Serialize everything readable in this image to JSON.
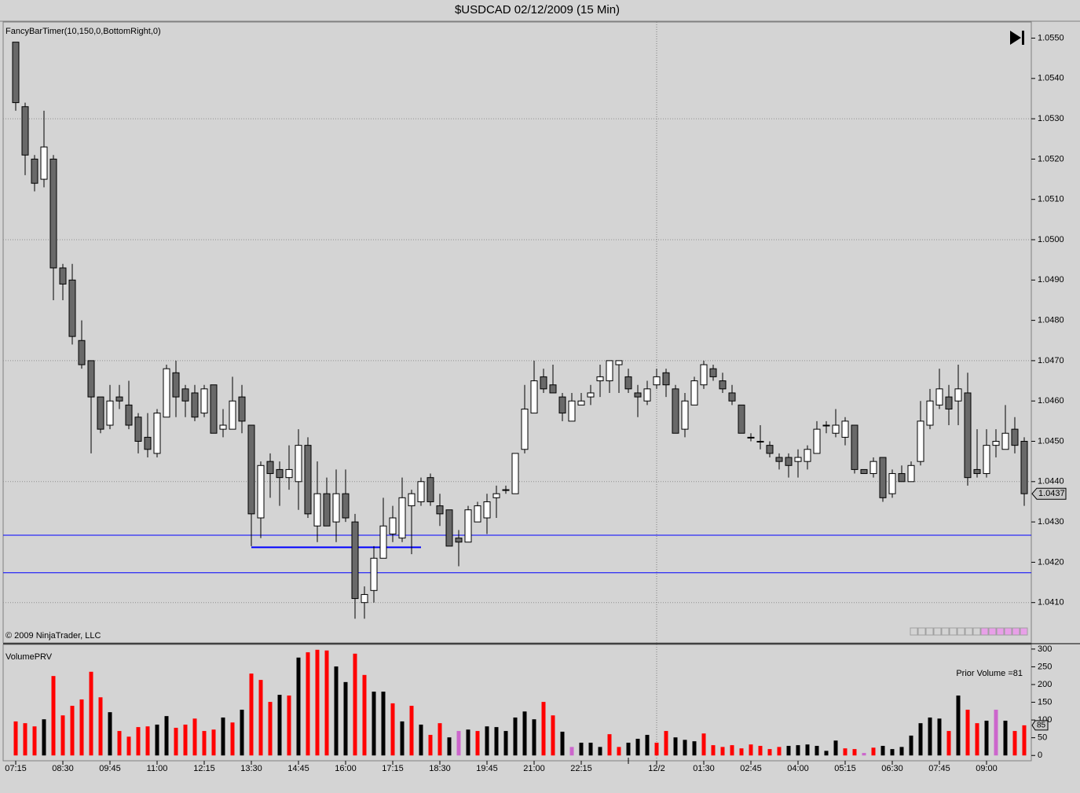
{
  "chart_data": [
    {
      "type": "candlestick",
      "title": "$USDCAD  02/12/2009 (15 Min)",
      "annotations": [
        "FancyBarTimer(10,150,0,BottomRight,0)",
        "© 2009 NinjaTrader, LLC"
      ],
      "up_color": "#ffffff",
      "down_color": "#696969",
      "ylim": [
        1.04,
        1.0554
      ],
      "yticks": [
        {
          "value": 1.055,
          "label": "1.0550"
        },
        {
          "value": 1.054,
          "label": "1.0540"
        },
        {
          "value": 1.053,
          "label": "1.0530"
        },
        {
          "value": 1.052,
          "label": "1.0520"
        },
        {
          "value": 1.051,
          "label": "1.0510"
        },
        {
          "value": 1.05,
          "label": "1.0500"
        },
        {
          "value": 1.049,
          "label": "1.0490"
        },
        {
          "value": 1.048,
          "label": "1.0480"
        },
        {
          "value": 1.047,
          "label": "1.0470"
        },
        {
          "value": 1.046,
          "label": "1.0460"
        },
        {
          "value": 1.045,
          "label": "1.0450"
        },
        {
          "value": 1.044,
          "label": "1.0440"
        },
        {
          "value": 1.043,
          "label": "1.0430"
        },
        {
          "value": 1.042,
          "label": "1.0420"
        },
        {
          "value": 1.041,
          "label": "1.0410"
        }
      ],
      "ygrid": [
        1.053,
        1.05,
        1.047,
        1.044,
        1.041
      ],
      "hlines": [
        {
          "value": 1.04267,
          "color": "#0000ff"
        },
        {
          "value": 1.04174,
          "color": "#0000ff"
        }
      ],
      "segment": {
        "value": 1.04237,
        "from": 25,
        "to": 43,
        "color": "#0000ff"
      },
      "cursor_index": 68,
      "x_labels": [
        {
          "index": 0,
          "label": "07:15"
        },
        {
          "index": 5,
          "label": "08:30"
        },
        {
          "index": 10,
          "label": "09:45"
        },
        {
          "index": 15,
          "label": "11:00"
        },
        {
          "index": 20,
          "label": "12:15"
        },
        {
          "index": 25,
          "label": "13:30"
        },
        {
          "index": 30,
          "label": "14:45"
        },
        {
          "index": 35,
          "label": "16:00"
        },
        {
          "index": 40,
          "label": "17:15"
        },
        {
          "index": 45,
          "label": "18:30"
        },
        {
          "index": 50,
          "label": "19:45"
        },
        {
          "index": 55,
          "label": "21:00"
        },
        {
          "index": 60,
          "label": "22:15"
        },
        {
          "index": 68,
          "label": "12/2"
        },
        {
          "index": 73,
          "label": "01:30"
        },
        {
          "index": 78,
          "label": "02:45"
        },
        {
          "index": 83,
          "label": "04:00"
        },
        {
          "index": 88,
          "label": "05:15"
        },
        {
          "index": 93,
          "label": "06:30"
        },
        {
          "index": 98,
          "label": "07:45"
        },
        {
          "index": 103,
          "label": "09:00"
        }
      ],
      "x_unlabeled_ticks": [
        65
      ],
      "open": [
        1.0549,
        1.0533,
        1.052,
        1.0515,
        1.052,
        1.0493,
        1.049,
        1.0475,
        1.047,
        1.0461,
        1.0454,
        1.0461,
        1.0459,
        1.0456,
        1.0451,
        1.0447,
        1.0456,
        1.0467,
        1.0463,
        1.0462,
        1.0457,
        1.0464,
        1.0453,
        1.0453,
        1.0461,
        1.0454,
        1.0431,
        1.0445,
        1.0443,
        1.0441,
        1.044,
        1.0449,
        1.0429,
        1.0437,
        1.043,
        1.0437,
        1.043,
        1.041,
        1.0413,
        1.0421,
        1.0427,
        1.0426,
        1.0434,
        1.0435,
        1.0441,
        1.0434,
        1.0433,
        1.0426,
        1.0425,
        1.043,
        1.0431,
        1.0436,
        1.0438,
        1.0437,
        1.0448,
        1.0457,
        1.0466,
        1.0464,
        1.0461,
        1.0455,
        1.0459,
        1.0461,
        1.0465,
        1.0465,
        1.0469,
        1.0466,
        1.0462,
        1.046,
        1.0464,
        1.0467,
        1.0463,
        1.0453,
        1.0459,
        1.0464,
        1.0468,
        1.0465,
        1.0462,
        1.0459,
        1.0451,
        1.045,
        1.0449,
        1.0446,
        1.0446,
        1.0445,
        1.0445,
        1.0447,
        1.0454,
        1.0452,
        1.0451,
        1.0454,
        1.0443,
        1.0442,
        1.0446,
        1.0437,
        1.0442,
        1.044,
        1.0445,
        1.0454,
        1.0459,
        1.0461,
        1.046,
        1.0462,
        1.0443,
        1.0442,
        1.0449,
        1.0448,
        1.0453,
        1.045
      ],
      "high": [
        1.0549,
        1.0534,
        1.0521,
        1.0532,
        1.0521,
        1.0494,
        1.0494,
        1.048,
        1.047,
        1.0461,
        1.0464,
        1.0464,
        1.0465,
        1.0457,
        1.0457,
        1.0458,
        1.0469,
        1.047,
        1.0464,
        1.0464,
        1.0464,
        1.0464,
        1.0458,
        1.0466,
        1.0464,
        1.0454,
        1.0445,
        1.0447,
        1.0445,
        1.0449,
        1.0453,
        1.0451,
        1.0445,
        1.0441,
        1.0443,
        1.0443,
        1.0432,
        1.0414,
        1.0424,
        1.0436,
        1.0434,
        1.0441,
        1.0438,
        1.0441,
        1.0442,
        1.0437,
        1.0433,
        1.0428,
        1.0434,
        1.0435,
        1.0437,
        1.0439,
        1.0439,
        1.0447,
        1.0464,
        1.047,
        1.0468,
        1.0469,
        1.0462,
        1.0462,
        1.0462,
        1.0464,
        1.0469,
        1.047,
        1.047,
        1.0468,
        1.0464,
        1.0465,
        1.0468,
        1.0468,
        1.0464,
        1.0462,
        1.0466,
        1.047,
        1.0469,
        1.0467,
        1.0464,
        1.0459,
        1.0452,
        1.0454,
        1.045,
        1.0447,
        1.0447,
        1.0448,
        1.0449,
        1.0455,
        1.0455,
        1.0458,
        1.0456,
        1.0454,
        1.0443,
        1.0446,
        1.0446,
        1.0443,
        1.0444,
        1.0445,
        1.046,
        1.0463,
        1.0468,
        1.0464,
        1.0469,
        1.0467,
        1.0453,
        1.0453,
        1.0453,
        1.0459,
        1.0456,
        1.0451
      ],
      "low": [
        1.0532,
        1.0516,
        1.0512,
        1.0513,
        1.0485,
        1.0485,
        1.0474,
        1.0468,
        1.0447,
        1.0452,
        1.0453,
        1.0458,
        1.0453,
        1.0447,
        1.0446,
        1.0446,
        1.0456,
        1.0456,
        1.0456,
        1.0455,
        1.0456,
        1.0452,
        1.0451,
        1.0453,
        1.0452,
        1.0424,
        1.0426,
        1.0436,
        1.0434,
        1.0438,
        1.0433,
        1.0431,
        1.0425,
        1.0429,
        1.0425,
        1.043,
        1.0406,
        1.0406,
        1.041,
        1.0421,
        1.0425,
        1.0425,
        1.0422,
        1.0434,
        1.0434,
        1.0429,
        1.0424,
        1.0419,
        1.0425,
        1.043,
        1.0427,
        1.0431,
        1.0437,
        1.0437,
        1.0447,
        1.0457,
        1.0462,
        1.0462,
        1.0455,
        1.0455,
        1.0459,
        1.0459,
        1.0461,
        1.0462,
        1.0462,
        1.0462,
        1.0456,
        1.0459,
        1.0463,
        1.0461,
        1.0452,
        1.0451,
        1.0459,
        1.0463,
        1.0465,
        1.0462,
        1.0459,
        1.0452,
        1.045,
        1.0448,
        1.0446,
        1.0443,
        1.0441,
        1.0441,
        1.0443,
        1.0447,
        1.0452,
        1.0451,
        1.0449,
        1.0442,
        1.0442,
        1.0441,
        1.0435,
        1.0436,
        1.044,
        1.044,
        1.0444,
        1.0453,
        1.0458,
        1.0454,
        1.0454,
        1.0439,
        1.0441,
        1.0441,
        1.0446,
        1.0448,
        1.0447,
        1.0434
      ],
      "close": [
        1.0534,
        1.0521,
        1.0514,
        1.0523,
        1.0493,
        1.0489,
        1.0476,
        1.0469,
        1.0461,
        1.0453,
        1.046,
        1.046,
        1.0454,
        1.045,
        1.0448,
        1.0457,
        1.0468,
        1.0461,
        1.046,
        1.0456,
        1.0463,
        1.0452,
        1.0454,
        1.046,
        1.0455,
        1.0432,
        1.0444,
        1.0442,
        1.0441,
        1.0443,
        1.0449,
        1.0432,
        1.0437,
        1.0429,
        1.0437,
        1.0431,
        1.0411,
        1.0412,
        1.0421,
        1.0429,
        1.0431,
        1.0436,
        1.0437,
        1.044,
        1.0435,
        1.0432,
        1.0424,
        1.0425,
        1.0433,
        1.0434,
        1.0435,
        1.0437,
        1.0438,
        1.0447,
        1.0458,
        1.0465,
        1.0463,
        1.0462,
        1.0457,
        1.046,
        1.046,
        1.0462,
        1.0466,
        1.047,
        1.047,
        1.0463,
        1.0461,
        1.0463,
        1.0466,
        1.0464,
        1.0452,
        1.046,
        1.0465,
        1.0469,
        1.0466,
        1.0463,
        1.046,
        1.0452,
        1.0451,
        1.045,
        1.0447,
        1.0445,
        1.0444,
        1.0446,
        1.0448,
        1.0453,
        1.0454,
        1.0454,
        1.0455,
        1.0443,
        1.0442,
        1.0445,
        1.0436,
        1.0442,
        1.044,
        1.0444,
        1.0455,
        1.046,
        1.0463,
        1.0458,
        1.0463,
        1.0441,
        1.0442,
        1.0449,
        1.045,
        1.0452,
        1.0449,
        1.0437
      ]
    },
    {
      "type": "bar",
      "title": "VolumePRV",
      "annotations": [
        "Prior Volume =81"
      ],
      "ylim": [
        -15,
        313
      ],
      "yticks": [
        0,
        50,
        100,
        150,
        200,
        250,
        300
      ],
      "values": [
        96,
        91,
        82,
        102,
        224,
        113,
        140,
        158,
        236,
        164,
        122,
        69,
        53,
        80,
        82,
        87,
        111,
        78,
        87,
        104,
        69,
        73,
        107,
        93,
        129,
        231,
        213,
        151,
        171,
        169,
        276,
        291,
        298,
        296,
        251,
        207,
        287,
        227,
        180,
        180,
        147,
        96,
        140,
        87,
        58,
        91,
        51,
        69,
        73,
        69,
        82,
        80,
        69,
        107,
        124,
        102,
        151,
        113,
        67,
        24,
        36,
        36,
        24,
        60,
        24,
        36,
        47,
        58,
        36,
        69,
        51,
        44,
        40,
        62,
        29,
        24,
        29,
        20,
        31,
        27,
        18,
        24,
        27,
        29,
        31,
        27,
        13,
        42,
        20,
        18,
        7,
        22,
        27,
        18,
        24,
        56,
        91,
        107,
        104,
        69,
        169,
        129,
        91,
        98,
        129,
        98,
        69,
        85
      ],
      "colors": [
        "#ff0000",
        "#ff0000",
        "#ff0000",
        "#000000",
        "#ff0000",
        "#ff0000",
        "#ff0000",
        "#ff0000",
        "#ff0000",
        "#ff0000",
        "#000000",
        "#ff0000",
        "#ff0000",
        "#ff0000",
        "#ff0000",
        "#000000",
        "#000000",
        "#ff0000",
        "#ff0000",
        "#ff0000",
        "#ff0000",
        "#ff0000",
        "#000000",
        "#ff0000",
        "#000000",
        "#ff0000",
        "#ff0000",
        "#ff0000",
        "#000000",
        "#ff0000",
        "#000000",
        "#ff0000",
        "#ff0000",
        "#ff0000",
        "#000000",
        "#000000",
        "#ff0000",
        "#ff0000",
        "#000000",
        "#000000",
        "#ff0000",
        "#000000",
        "#ff0000",
        "#000000",
        "#ff0000",
        "#ff0000",
        "#000000",
        "#cc66cc",
        "#000000",
        "#ff0000",
        "#000000",
        "#000000",
        "#000000",
        "#000000",
        "#000000",
        "#000000",
        "#ff0000",
        "#ff0000",
        "#000000",
        "#cc66cc",
        "#000000",
        "#000000",
        "#000000",
        "#ff0000",
        "#ff0000",
        "#000000",
        "#000000",
        "#000000",
        "#ff0000",
        "#ff0000",
        "#000000",
        "#000000",
        "#000000",
        "#ff0000",
        "#ff0000",
        "#ff0000",
        "#ff0000",
        "#ff0000",
        "#ff0000",
        "#ff0000",
        "#ff0000",
        "#ff0000",
        "#000000",
        "#000000",
        "#000000",
        "#000000",
        "#000000",
        "#000000",
        "#ff0000",
        "#ff0000",
        "#cc66cc",
        "#ff0000",
        "#000000",
        "#000000",
        "#000000",
        "#000000",
        "#000000",
        "#000000",
        "#000000",
        "#ff0000",
        "#000000",
        "#ff0000",
        "#ff0000",
        "#000000",
        "#cc66cc",
        "#000000",
        "#ff0000",
        "#ff0000"
      ]
    }
  ]
}
